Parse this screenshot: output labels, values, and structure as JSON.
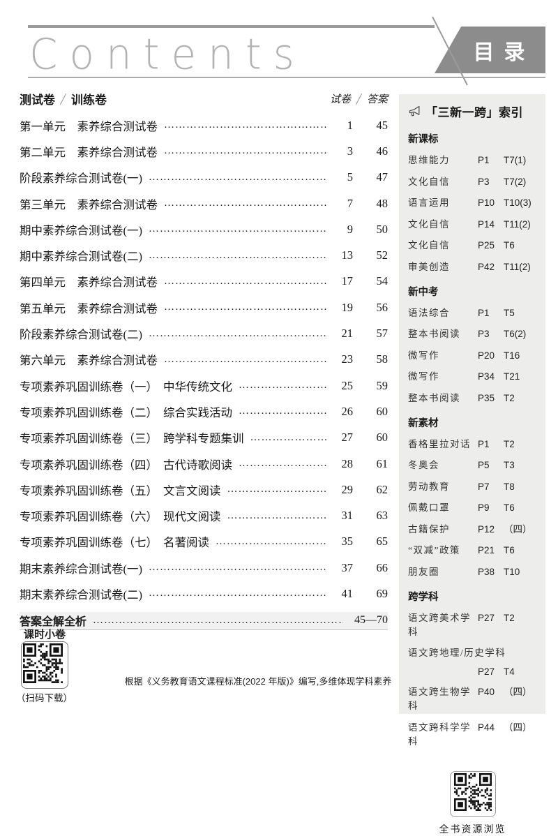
{
  "page": {
    "contents_title": "Contents",
    "banner_label": "目录"
  },
  "toc": {
    "col_left_1": "测试卷",
    "col_left_2": "训练卷",
    "col_right_1": "试卷",
    "col_right_2": "答案",
    "rows": [
      {
        "title": "第一单元　素养综合测试卷",
        "subtitle": "",
        "paper": "1",
        "answer": "45"
      },
      {
        "title": "第二单元　素养综合测试卷",
        "subtitle": "",
        "paper": "3",
        "answer": "46"
      },
      {
        "title": "阶段素养综合测试卷(一)",
        "subtitle": "",
        "paper": "5",
        "answer": "47"
      },
      {
        "title": "第三单元　素养综合测试卷",
        "subtitle": "",
        "paper": "7",
        "answer": "48"
      },
      {
        "title": "期中素养综合测试卷(一)",
        "subtitle": "",
        "paper": "9",
        "answer": "50"
      },
      {
        "title": "期中素养综合测试卷(二)",
        "subtitle": "",
        "paper": "13",
        "answer": "52"
      },
      {
        "title": "第四单元　素养综合测试卷",
        "subtitle": "",
        "paper": "17",
        "answer": "54"
      },
      {
        "title": "第五单元　素养综合测试卷",
        "subtitle": "",
        "paper": "19",
        "answer": "56"
      },
      {
        "title": "阶段素养综合测试卷(二)",
        "subtitle": "",
        "paper": "21",
        "answer": "57"
      },
      {
        "title": "第六单元　素养综合测试卷",
        "subtitle": "",
        "paper": "23",
        "answer": "58"
      },
      {
        "title": "专项素养巩固训练卷（一）",
        "subtitle": "中华传统文化",
        "paper": "25",
        "answer": "59"
      },
      {
        "title": "专项素养巩固训练卷（二）",
        "subtitle": "综合实践活动",
        "paper": "26",
        "answer": "60"
      },
      {
        "title": "专项素养巩固训练卷（三）",
        "subtitle": "跨学科专题集训",
        "paper": "27",
        "answer": "60"
      },
      {
        "title": "专项素养巩固训练卷（四）",
        "subtitle": "古代诗歌阅读",
        "paper": "28",
        "answer": "61"
      },
      {
        "title": "专项素养巩固训练卷（五）",
        "subtitle": "文言文阅读",
        "paper": "29",
        "answer": "62"
      },
      {
        "title": "专项素养巩固训练卷（六）",
        "subtitle": "现代文阅读",
        "paper": "31",
        "answer": "63"
      },
      {
        "title": "专项素养巩固训练卷（七）",
        "subtitle": "名著阅读",
        "paper": "35",
        "answer": "65"
      },
      {
        "title": "期末素养综合测试卷(一)",
        "subtitle": "",
        "paper": "37",
        "answer": "66"
      },
      {
        "title": "期末素养综合测试卷(二)",
        "subtitle": "",
        "paper": "41",
        "answer": "69"
      }
    ],
    "answers_row": {
      "title": "答案全解全析",
      "pages": "45—70"
    }
  },
  "sidebar": {
    "title": "「三新一跨」索引",
    "sections": [
      {
        "heading": "新课标",
        "items": [
          {
            "label": "思维能力",
            "page": "P1",
            "ref": "T7(1)"
          },
          {
            "label": "文化自信",
            "page": "P3",
            "ref": "T7(2)"
          },
          {
            "label": "语言运用",
            "page": "P10",
            "ref": "T10(3)"
          },
          {
            "label": "文化自信",
            "page": "P14",
            "ref": "T11(2)"
          },
          {
            "label": "文化自信",
            "page": "P25",
            "ref": "T6"
          },
          {
            "label": "审美创造",
            "page": "P42",
            "ref": "T11(2)"
          }
        ]
      },
      {
        "heading": "新中考",
        "items": [
          {
            "label": "语法综合",
            "page": "P1",
            "ref": "T5"
          },
          {
            "label": "整本书阅读",
            "page": "P3",
            "ref": "T6(2)"
          },
          {
            "label": "微写作",
            "page": "P20",
            "ref": "T16"
          },
          {
            "label": "微写作",
            "page": "P34",
            "ref": "T21"
          },
          {
            "label": "整本书阅读",
            "page": "P35",
            "ref": "T2"
          }
        ]
      },
      {
        "heading": "新素材",
        "items": [
          {
            "label": "香格里拉对话",
            "page": "P1",
            "ref": "T2"
          },
          {
            "label": "冬奥会",
            "page": "P5",
            "ref": "T3"
          },
          {
            "label": "劳动教育",
            "page": "P7",
            "ref": "T8"
          },
          {
            "label": "佩戴口罩",
            "page": "P9",
            "ref": "T6"
          },
          {
            "label": "古籍保护",
            "page": "P12",
            "ref": "（四）"
          },
          {
            "label": "“双减”政策",
            "page": "P21",
            "ref": "T6"
          },
          {
            "label": "朋友圈",
            "page": "P38",
            "ref": "T10"
          }
        ]
      },
      {
        "heading": "跨学科",
        "items": [
          {
            "label": "语文跨美术学科",
            "page": "P27",
            "ref": "T2"
          },
          {
            "label": "语文跨地理/历史学科",
            "page": "P27",
            "ref": "T4",
            "wrap": true
          },
          {
            "label": "语文跨生物学科",
            "page": "P40",
            "ref": "（四）"
          },
          {
            "label": "语文跨科学学科",
            "page": "P44",
            "ref": "（四）"
          }
        ]
      }
    ],
    "qr_caption": "全书资源浏览"
  },
  "footer": {
    "quiz_label": "课时小卷",
    "scan_caption": "（扫码下载）",
    "note": "根据《义务教育语文课程标准(2022 年版)》编写,多维体现学科素养"
  }
}
